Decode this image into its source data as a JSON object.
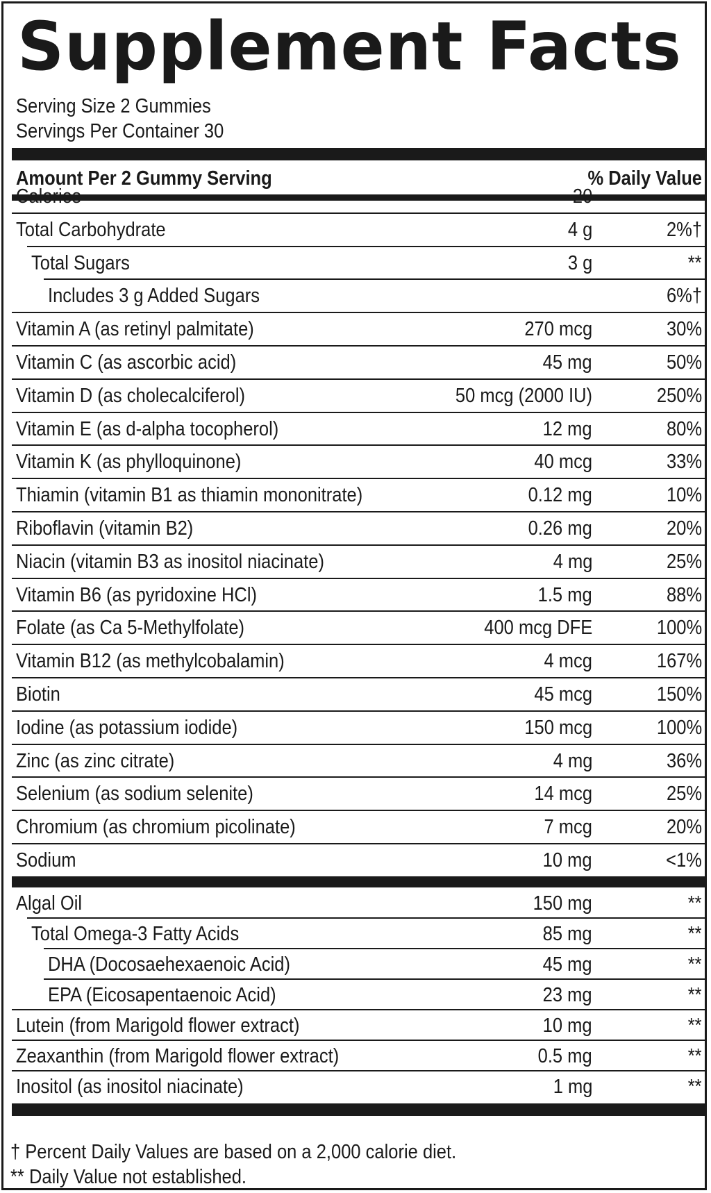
{
  "label": {
    "title": "Supplement Facts",
    "serving_size": "Serving Size 2 Gummies",
    "servings_per_container": "Servings Per Container 30",
    "header_amount": "Amount Per 2 Gummy Serving",
    "header_dv": "% Daily Value"
  },
  "nutrients": [
    {
      "name": "Calories",
      "amount": "20",
      "dv": "",
      "indent": 0
    },
    {
      "name": "Total Carbohydrate",
      "amount": "4 g",
      "dv": "2%†",
      "indent": 0
    },
    {
      "name": "Total Sugars",
      "amount": "3 g",
      "dv": "**",
      "indent": 1
    },
    {
      "name": "Includes 3 g Added Sugars",
      "amount": "",
      "dv": "6%†",
      "indent": 2
    },
    {
      "name": "Vitamin A (as retinyl palmitate)",
      "amount": "270 mcg",
      "dv": "30%",
      "indent": 0
    },
    {
      "name": "Vitamin C (as ascorbic acid)",
      "amount": "45 mg",
      "dv": "50%",
      "indent": 0
    },
    {
      "name": "Vitamin D (as cholecalciferol)",
      "amount": "50 mcg (2000 IU)",
      "dv": "250%",
      "indent": 0
    },
    {
      "name": "Vitamin E (as d-alpha tocopherol)",
      "amount": "12 mg",
      "dv": "80%",
      "indent": 0
    },
    {
      "name": "Vitamin K (as phylloquinone)",
      "amount": "40 mcg",
      "dv": "33%",
      "indent": 0
    },
    {
      "name": "Thiamin (vitamin B1 as thiamin mononitrate)",
      "amount": "0.12 mg",
      "dv": "10%",
      "indent": 0
    },
    {
      "name": "Riboflavin (vitamin B2)",
      "amount": "0.26 mg",
      "dv": "20%",
      "indent": 0
    },
    {
      "name": "Niacin (vitamin B3 as inositol niacinate)",
      "amount": "4 mg",
      "dv": "25%",
      "indent": 0
    },
    {
      "name": "Vitamin B6 (as pyridoxine HCl)",
      "amount": "1.5 mg",
      "dv": "88%",
      "indent": 0
    },
    {
      "name": "Folate (as Ca 5-Methylfolate)",
      "amount": "400 mcg DFE",
      "dv": "100%",
      "indent": 0
    },
    {
      "name": "Vitamin B12 (as methylcobalamin)",
      "amount": "4 mcg",
      "dv": "167%",
      "indent": 0
    },
    {
      "name": "Biotin",
      "amount": "45 mcg",
      "dv": "150%",
      "indent": 0
    },
    {
      "name": "Iodine (as potassium iodide)",
      "amount": "150 mcg",
      "dv": "100%",
      "indent": 0
    },
    {
      "name": "Zinc (as zinc citrate)",
      "amount": "4 mg",
      "dv": "36%",
      "indent": 0
    },
    {
      "name": "Selenium (as sodium selenite)",
      "amount": "14 mcg",
      "dv": "25%",
      "indent": 0
    },
    {
      "name": "Chromium (as chromium picolinate)",
      "amount": "7 mcg",
      "dv": "20%",
      "indent": 0
    },
    {
      "name": "Sodium",
      "amount": "10 mg",
      "dv": "<1%",
      "indent": 0
    }
  ],
  "other_ingredients": [
    {
      "name": "Algal Oil",
      "amount": "150 mg",
      "dv": "**",
      "indent": 0
    },
    {
      "name": "Total Omega-3 Fatty Acids",
      "amount": "85 mg",
      "dv": "**",
      "indent": 1
    },
    {
      "name": "DHA (Docosaehexaenoic Acid)",
      "amount": "45 mg",
      "dv": "**",
      "indent": 2
    },
    {
      "name": "EPA (Eicosapentaenoic Acid)",
      "amount": "23 mg",
      "dv": "**",
      "indent": 2
    },
    {
      "name": "Lutein (from Marigold flower extract)",
      "amount": "10 mg",
      "dv": "**",
      "indent": 0
    },
    {
      "name": "Zeaxanthin (from Marigold flower extract)",
      "amount": "0.5 mg",
      "dv": "**",
      "indent": 0
    },
    {
      "name": "Inositol (as inositol niacinate)",
      "amount": "1 mg",
      "dv": "**",
      "indent": 0
    }
  ],
  "footnotes": {
    "dagger": "† Percent Daily Values are based on a 2,000 calorie diet.",
    "double_star": "** Daily Value not established."
  }
}
